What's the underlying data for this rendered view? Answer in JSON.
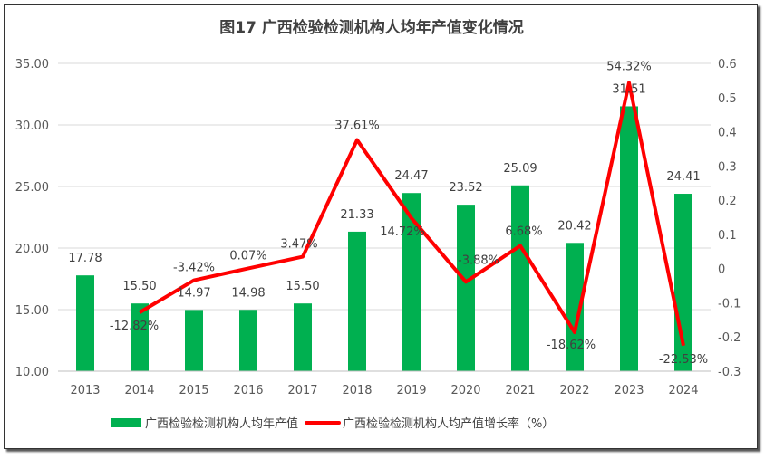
{
  "chart_data": {
    "type": "bar+line",
    "title": "图17  广西检验检测机构人均年产值变化情况",
    "categories": [
      "2013",
      "2014",
      "2015",
      "2016",
      "2017",
      "2018",
      "2019",
      "2020",
      "2021",
      "2022",
      "2023",
      "2024"
    ],
    "series": [
      {
        "name": "广西检验检测机构人均年产值",
        "type": "bar",
        "axis": "left",
        "color": "#00B050",
        "values": [
          17.78,
          15.5,
          14.97,
          14.98,
          15.5,
          21.33,
          24.47,
          23.52,
          25.09,
          20.42,
          31.51,
          24.41
        ],
        "labels": [
          "17.78",
          "15.50",
          "14.97",
          "14.98",
          "15.50",
          "21.33",
          "24.47",
          "23.52",
          "25.09",
          "20.42",
          "31.51",
          "24.41"
        ]
      },
      {
        "name": "广西检验检测机构人均产值增长率（%）",
        "type": "line",
        "axis": "right",
        "color": "#FF0000",
        "values": [
          null,
          -0.1282,
          -0.0342,
          0.0007,
          0.0347,
          0.3761,
          0.1472,
          -0.0388,
          0.0668,
          -0.1862,
          0.5432,
          -0.2253
        ],
        "labels": [
          null,
          "-12.82%",
          "-3.42%",
          "0.07%",
          "3.47%",
          "37.61%",
          "14.72%",
          "-3.88%",
          "6.68%",
          "-18.62%",
          "54.32%",
          "-22.53%"
        ]
      }
    ],
    "left_axis": {
      "ylim": [
        10,
        35
      ],
      "ticks": [
        "10.00",
        "15.00",
        "20.00",
        "25.00",
        "30.00",
        "35.00"
      ]
    },
    "right_axis": {
      "ylim": [
        -0.3,
        0.6
      ],
      "ticks": [
        "-0.3",
        "-0.2",
        "-0.1",
        "0",
        "0.1",
        "0.2",
        "0.3",
        "0.4",
        "0.5",
        "0.6"
      ]
    },
    "grid": true,
    "legend": "bottom"
  }
}
